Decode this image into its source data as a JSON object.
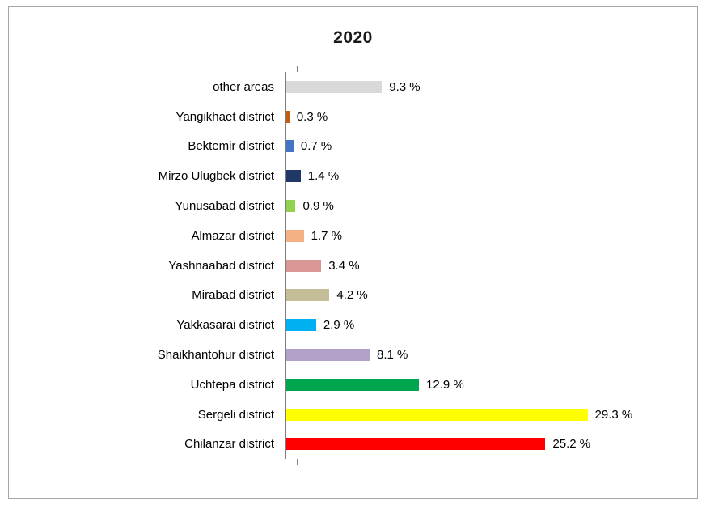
{
  "title": "2020",
  "chart_data": {
    "type": "bar",
    "orientation": "horizontal",
    "title": "2020",
    "xlabel": "",
    "ylabel": "",
    "xlim": [
      0,
      35
    ],
    "grid": false,
    "legend": "none",
    "categories": [
      "other areas",
      "Yangikhaet district",
      "Bektemir district",
      "Mirzo Ulugbek district",
      "Yunusabad district",
      "Almazar district",
      "Yashnaabad district",
      "Mirabad district",
      "Yakkasarai district",
      "Shaikhantohur district",
      "Uchtepa district",
      "Sergeli district",
      "Chilanzar district"
    ],
    "values": [
      9.3,
      0.3,
      0.7,
      1.4,
      0.9,
      1.7,
      3.4,
      4.2,
      2.9,
      8.1,
      12.9,
      29.3,
      25.2
    ],
    "value_labels": [
      "9.3 %",
      "0.3 %",
      "0.7 %",
      "1.4 %",
      "0.9 %",
      "1.7 %",
      "3.4 %",
      "4.2 %",
      "2.9 %",
      "8.1 %",
      "12.9 %",
      "29.3 %",
      "25.2 %"
    ],
    "colors": [
      "#d9d9d9",
      "#c55a11",
      "#4472c4",
      "#1f3864",
      "#92d050",
      "#f4b183",
      "#d99694",
      "#c4bd97",
      "#00b0f0",
      "#b1a0c7",
      "#00a550",
      "#ffff00",
      "#ff0000"
    ],
    "axis_color": "#7f7f7f",
    "frame_border_color": "#a6a6a6"
  }
}
